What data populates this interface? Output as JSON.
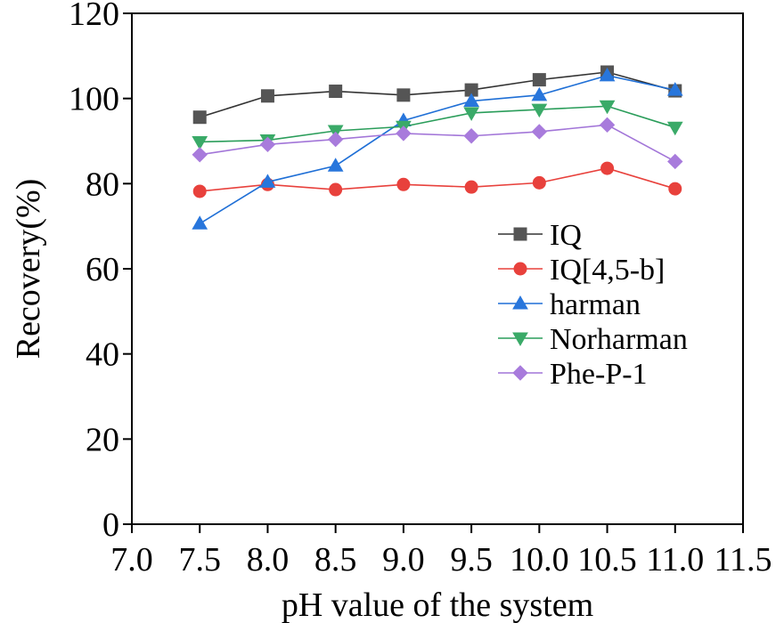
{
  "chart_data": {
    "type": "line",
    "title": "",
    "xlabel": "pH value of the system",
    "ylabel": "Recovery(%)",
    "xlim": [
      7.0,
      11.5
    ],
    "ylim": [
      0,
      120
    ],
    "grid": false,
    "legend_position": "center-right",
    "x_ticks": [
      7.0,
      7.5,
      8.0,
      8.5,
      9.0,
      9.5,
      10.0,
      10.5,
      11.0,
      11.5
    ],
    "x_tick_labels": [
      "7.0",
      "7.5",
      "8.0",
      "8.5",
      "9.0",
      "9.5",
      "10.0",
      "10.5",
      "11.0",
      "11.5"
    ],
    "y_ticks": [
      0,
      20,
      40,
      60,
      80,
      100,
      120
    ],
    "y_tick_labels": [
      "0",
      "20",
      "40",
      "60",
      "80",
      "100",
      "120"
    ],
    "x": [
      7.5,
      8.0,
      8.5,
      9.0,
      9.5,
      10.0,
      10.5,
      11.0
    ],
    "series": [
      {
        "name": "IQ",
        "marker": "square",
        "color": "#333333",
        "marker_color": "#555555",
        "values": [
          95.6,
          100.6,
          101.7,
          100.8,
          102.0,
          104.4,
          106.2,
          101.8
        ]
      },
      {
        "name": "IQ[4,5-b]",
        "marker": "circle",
        "color": "#e8413c",
        "marker_color": "#e8413c",
        "values": [
          78.2,
          79.8,
          78.6,
          79.8,
          79.2,
          80.2,
          83.6,
          78.8
        ]
      },
      {
        "name": "harman",
        "marker": "triangle-up",
        "color": "#1f6fd6",
        "marker_color": "#2876dc",
        "values": [
          70.6,
          80.4,
          84.2,
          94.8,
          99.4,
          100.8,
          105.4,
          102.0
        ]
      },
      {
        "name": "Norharman",
        "marker": "triangle-down",
        "color": "#2a9d5a",
        "marker_color": "#3aaa68",
        "values": [
          89.8,
          90.2,
          92.4,
          93.4,
          96.6,
          97.4,
          98.2,
          93.2
        ]
      },
      {
        "name": "Phe-P-1",
        "marker": "diamond",
        "color": "#a275d8",
        "marker_color": "#a87bdc",
        "values": [
          86.8,
          89.2,
          90.4,
          91.8,
          91.2,
          92.2,
          93.8,
          85.2
        ]
      }
    ]
  }
}
